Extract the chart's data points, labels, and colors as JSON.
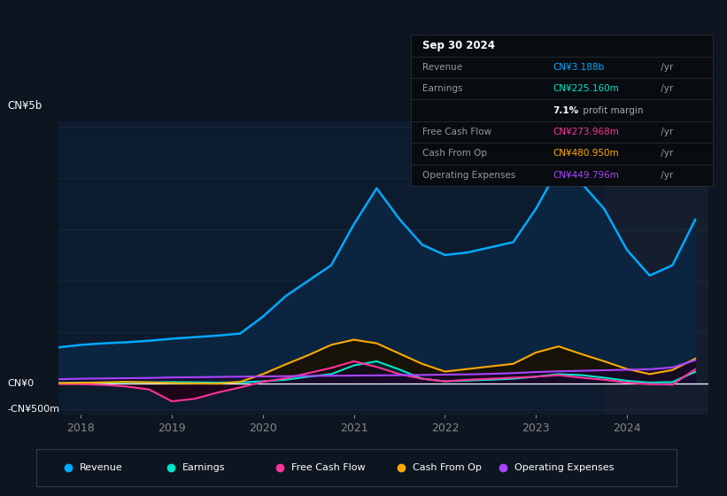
{
  "bg_color": "#0d1520",
  "chart_bg": "#0d1b2e",
  "grid_color": "#1a2a3a",
  "title_date": "Sep 30 2024",
  "tooltip_bg": "#080c10",
  "tooltip": {
    "Revenue": {
      "label": "Revenue",
      "value": "CN¥3.188b",
      "suffix": " /yr",
      "color": "#00aaff"
    },
    "Earnings": {
      "label": "Earnings",
      "value": "CN¥225.160m",
      "suffix": " /yr",
      "color": "#00e5cc"
    },
    "profit_margin": {
      "label": "",
      "value": "7.1%",
      "suffix": " profit margin",
      "color": "#dddddd"
    },
    "Free Cash Flow": {
      "label": "Free Cash Flow",
      "value": "CN¥273.968m",
      "suffix": " /yr",
      "color": "#ff3399"
    },
    "Cash From Op": {
      "label": "Cash From Op",
      "value": "CN¥480.950m",
      "suffix": " /yr",
      "color": "#ffaa00"
    },
    "Operating Expenses": {
      "label": "Operating Expenses",
      "value": "CN¥449.796m",
      "suffix": " /yr",
      "color": "#aa44ff"
    }
  },
  "tooltip_rows": [
    "Revenue",
    "Earnings",
    "profit_margin",
    "Free Cash Flow",
    "Cash From Op",
    "Operating Expenses"
  ],
  "ylabel_top": "CN¥5b",
  "ylabel_zero": "CN¥0",
  "ylabel_bottom": "-CN¥500m",
  "x_ticks": [
    2018,
    2019,
    2020,
    2021,
    2022,
    2023,
    2024
  ],
  "legend": [
    {
      "label": "Revenue",
      "color": "#00aaff"
    },
    {
      "label": "Earnings",
      "color": "#00e5cc"
    },
    {
      "label": "Free Cash Flow",
      "color": "#ff3399"
    },
    {
      "label": "Cash From Op",
      "color": "#ffaa00"
    },
    {
      "label": "Operating Expenses",
      "color": "#aa44ff"
    }
  ],
  "revenue_color": "#00aaff",
  "earnings_color": "#00e5cc",
  "fcf_color": "#ff3399",
  "cashop_color": "#ffaa00",
  "opex_color": "#aa44ff",
  "highlight_start": 2023.75,
  "x": [
    2017.75,
    2018.0,
    2018.25,
    2018.5,
    2018.75,
    2019.0,
    2019.25,
    2019.5,
    2019.75,
    2020.0,
    2020.25,
    2020.5,
    2020.75,
    2021.0,
    2021.25,
    2021.5,
    2021.75,
    2022.0,
    2022.25,
    2022.5,
    2022.75,
    2023.0,
    2023.25,
    2023.5,
    2023.75,
    2024.0,
    2024.25,
    2024.5,
    2024.75
  ],
  "revenue_m": [
    700,
    750,
    780,
    800,
    830,
    870,
    900,
    930,
    970,
    1300,
    1700,
    2000,
    2300,
    3100,
    3800,
    3200,
    2700,
    2500,
    2550,
    2650,
    2750,
    3400,
    4200,
    3900,
    3400,
    2600,
    2100,
    2300,
    3188
  ],
  "earnings_m": [
    10,
    15,
    15,
    20,
    20,
    25,
    20,
    15,
    20,
    40,
    70,
    130,
    180,
    350,
    430,
    270,
    90,
    40,
    55,
    70,
    90,
    130,
    180,
    160,
    110,
    50,
    15,
    25,
    225
  ],
  "fcf_m": [
    -10,
    -15,
    -30,
    -60,
    -120,
    -350,
    -300,
    -180,
    -80,
    30,
    100,
    200,
    300,
    430,
    320,
    180,
    90,
    40,
    70,
    90,
    110,
    130,
    160,
    110,
    70,
    15,
    -15,
    -25,
    274
  ],
  "cashop_m": [
    5,
    10,
    20,
    30,
    20,
    5,
    0,
    -5,
    30,
    180,
    370,
    550,
    750,
    850,
    780,
    580,
    380,
    230,
    280,
    330,
    380,
    600,
    720,
    570,
    430,
    280,
    180,
    260,
    481
  ],
  "opex_m": [
    80,
    90,
    95,
    100,
    105,
    115,
    120,
    125,
    130,
    135,
    140,
    145,
    148,
    152,
    155,
    160,
    163,
    170,
    175,
    185,
    200,
    220,
    235,
    245,
    255,
    265,
    275,
    310,
    450
  ],
  "ylim_min": -0.6,
  "ylim_max": 5.1
}
